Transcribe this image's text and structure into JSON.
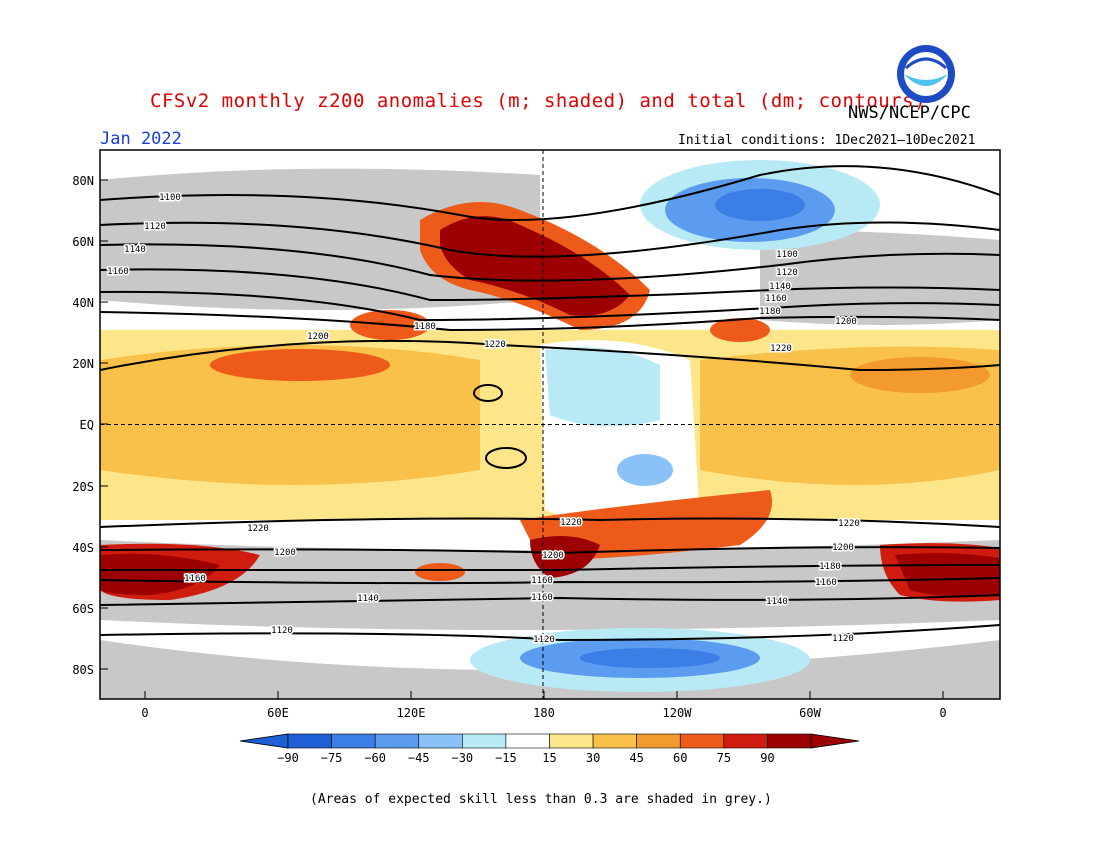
{
  "header": {
    "title": "CFSv2 monthly z200 anomalies (m; shaded) and total (dm; contours)",
    "source": "NWS/NCEP/CPC",
    "valid_month": "Jan 2022",
    "initial_conditions": "Initial conditions: 1Dec2021—10Dec2021",
    "logo_text": "NOAA"
  },
  "map": {
    "lat_labels": [
      "80N",
      "60N",
      "40N",
      "20N",
      "EQ",
      "20S",
      "40S",
      "60S",
      "80S"
    ],
    "lon_labels": [
      "0",
      "60E",
      "120E",
      "180",
      "120W",
      "60W",
      "0"
    ],
    "contour_labels": [
      "1100",
      "1120",
      "1140",
      "1160",
      "1180",
      "1200",
      "1220"
    ]
  },
  "colorbar": {
    "tick_labels": [
      "−90",
      "−75",
      "−60",
      "−45",
      "−30",
      "−15",
      "15",
      "30",
      "45",
      "60",
      "75",
      "90"
    ],
    "colors": [
      "#1e5fd6",
      "#3b7ee6",
      "#5b9cf0",
      "#8ac2f7",
      "#b8eaf5",
      "#ffffff",
      "#fde68a",
      "#f9c04a",
      "#f29a2e",
      "#ed5a1a",
      "#cf1c0f",
      "#9c0000"
    ],
    "low_arrow_color": "#1e5fd6",
    "high_arrow_color": "#9c0000"
  },
  "footnote": "(Areas of expected skill less than 0.3 are shaded in grey.)"
}
